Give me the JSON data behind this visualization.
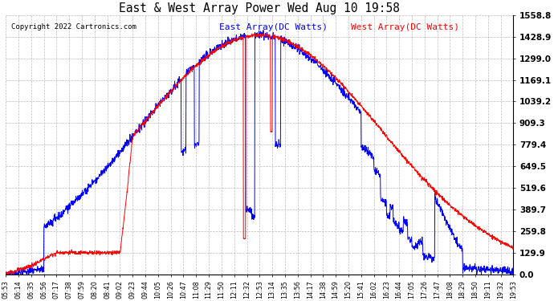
{
  "title": "East & West Array Power Wed Aug 10 19:58",
  "copyright": "Copyright 2022 Cartronics.com",
  "legend_east": "East Array(DC Watts)",
  "legend_west": "West Array(DC Watts)",
  "east_color": "blue",
  "west_color": "red",
  "background_color": "#ffffff",
  "grid_color": "#bbbbbb",
  "ylim": [
    0.0,
    1558.8
  ],
  "yticks": [
    0.0,
    129.9,
    259.8,
    389.7,
    519.6,
    649.5,
    779.4,
    909.3,
    1039.2,
    1169.1,
    1299.0,
    1428.9,
    1558.8
  ],
  "xtick_labels": [
    "05:53",
    "06:14",
    "06:35",
    "06:56",
    "07:17",
    "07:38",
    "07:59",
    "08:20",
    "08:41",
    "09:02",
    "09:23",
    "09:44",
    "10:05",
    "10:26",
    "10:47",
    "11:08",
    "11:29",
    "11:50",
    "12:11",
    "12:32",
    "12:53",
    "13:14",
    "13:35",
    "13:56",
    "14:17",
    "14:38",
    "14:59",
    "15:20",
    "15:41",
    "16:02",
    "16:23",
    "16:44",
    "17:05",
    "17:26",
    "17:47",
    "18:08",
    "18:29",
    "18:50",
    "19:11",
    "19:32",
    "19:53"
  ]
}
